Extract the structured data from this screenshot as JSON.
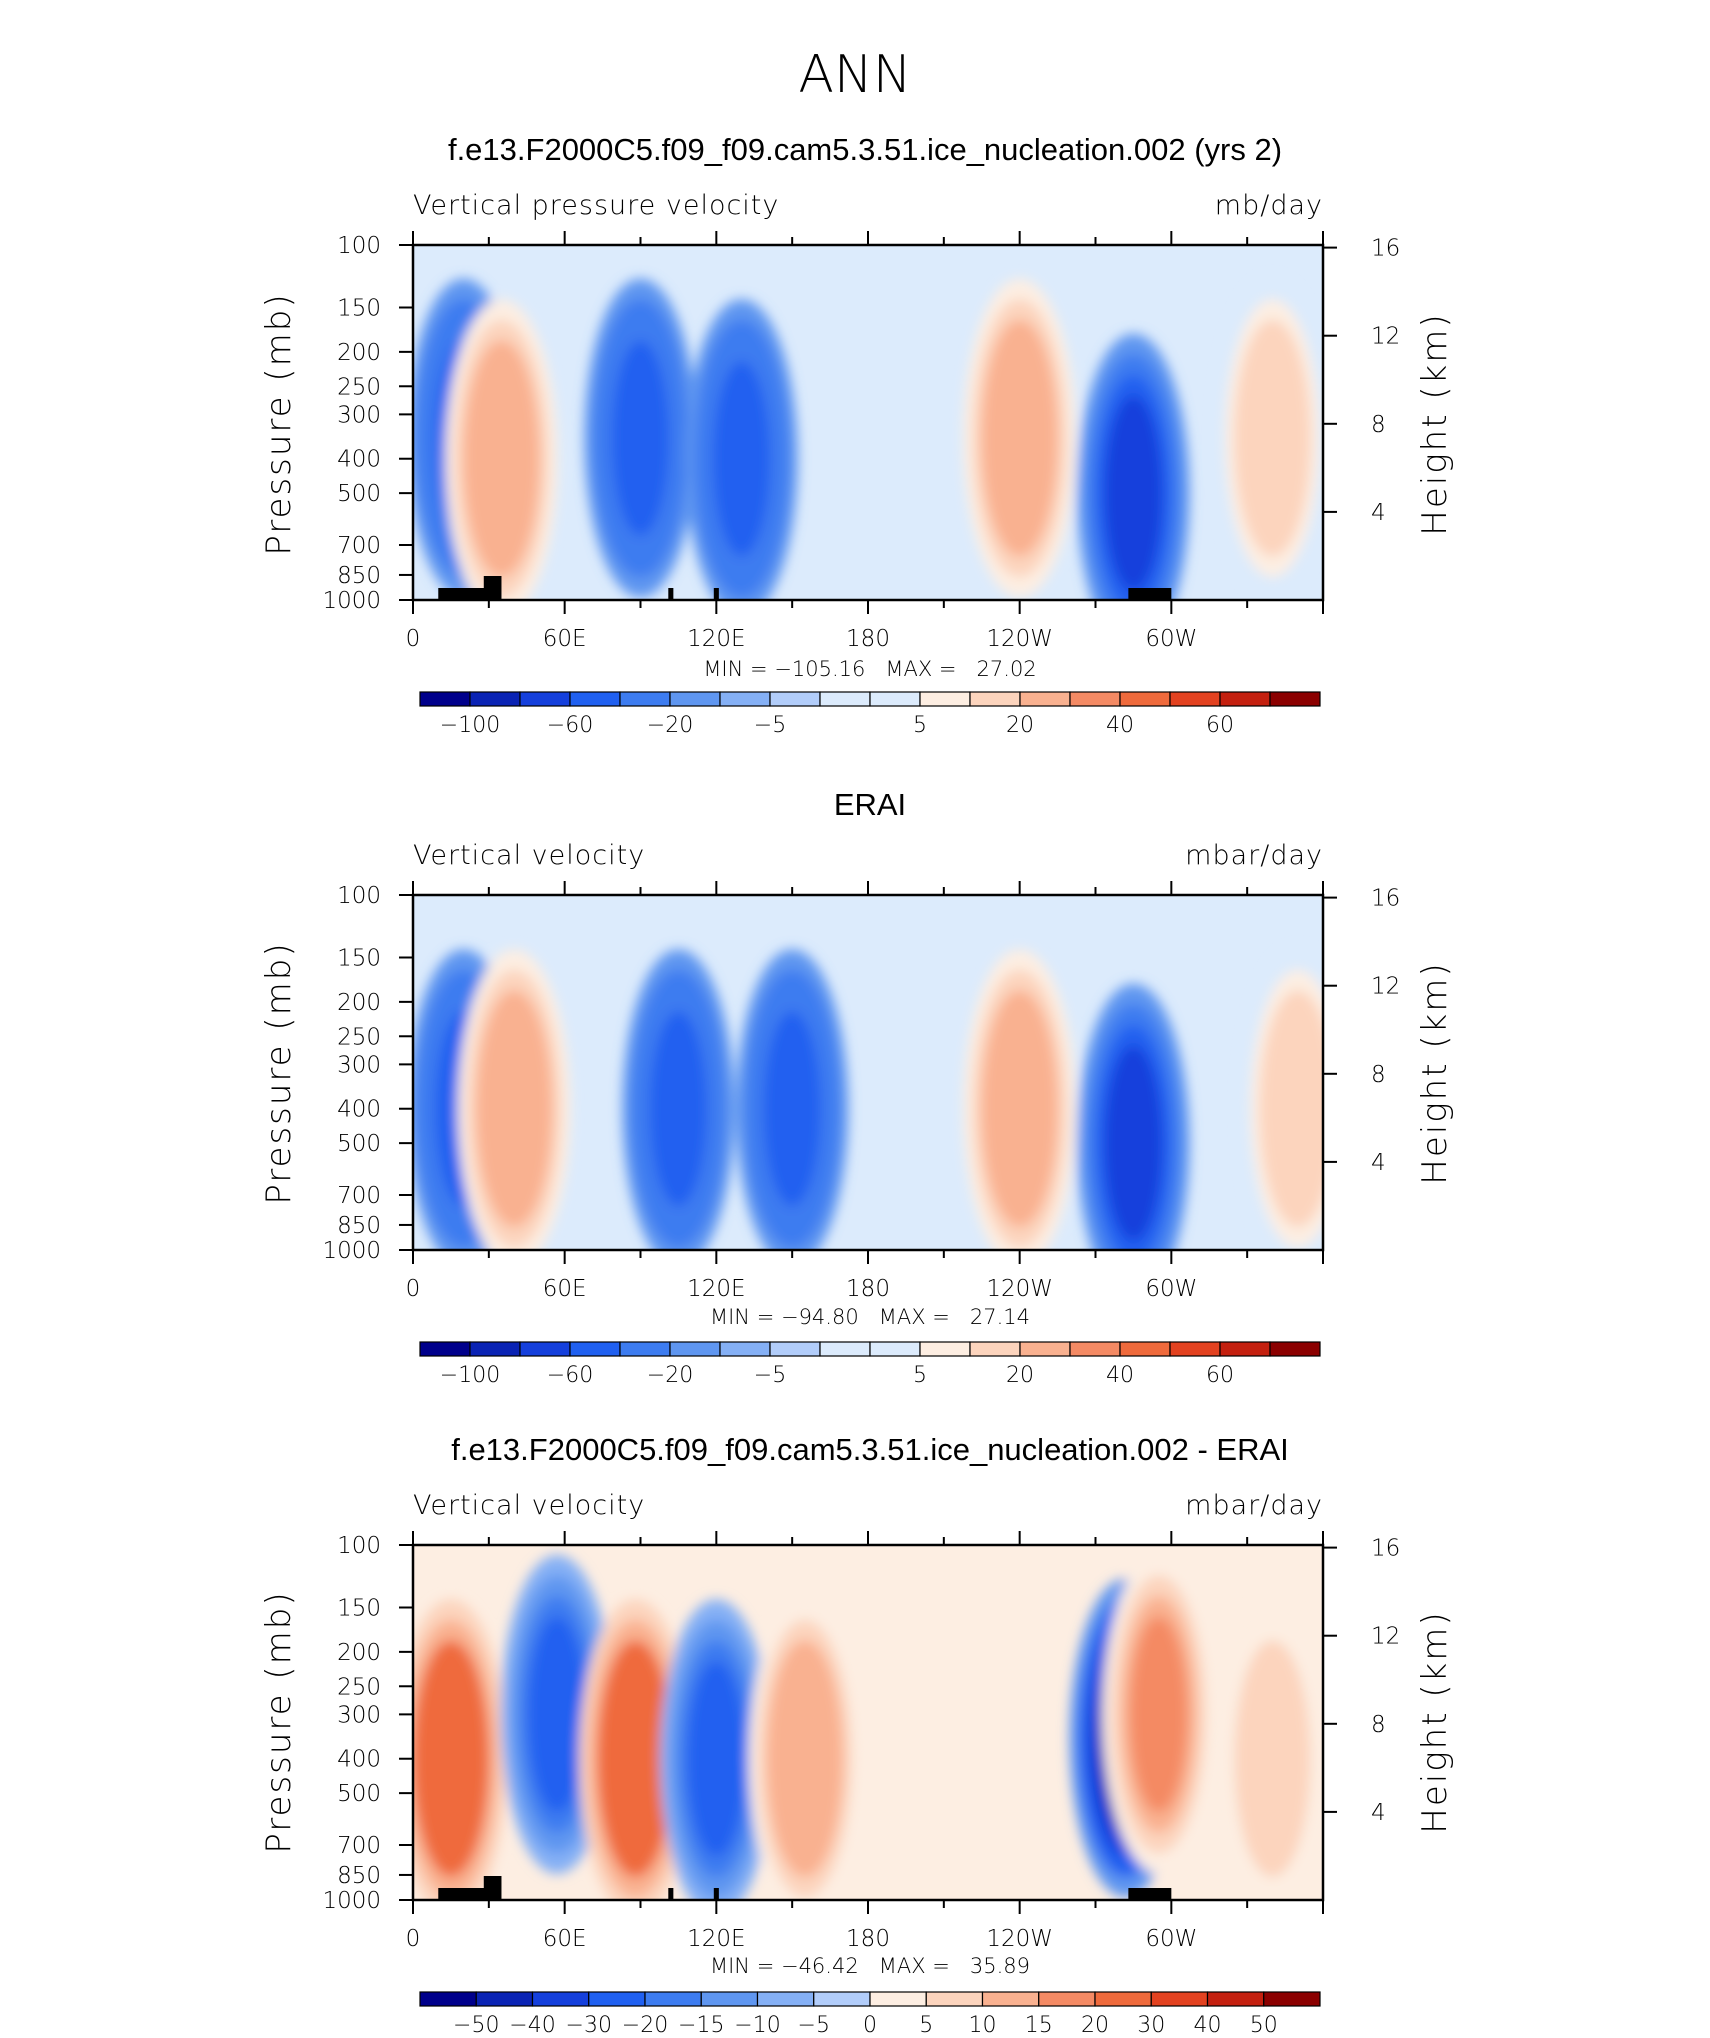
{
  "page": {
    "title": "ANN"
  },
  "colors": {
    "blue_red_16": [
      "#00008b",
      "#0a23b4",
      "#1540dc",
      "#2060f0",
      "#3d7cf0",
      "#5f96f0",
      "#85b0f5",
      "#b2cdfa",
      "#dcebfc",
      "#fdeee2",
      "#fcd4bd",
      "#f9b190",
      "#f48a64",
      "#ef6a3c",
      "#e34220",
      "#c4200f",
      "#8b0000"
    ]
  },
  "panels": [
    {
      "id": "model",
      "title": "f.e13.F2000C5.f09_f09.cam5.3.51.ice_nucleation.002 (yrs 2)",
      "left_label": "Vertical pressure velocity",
      "right_label": "mb/day",
      "ylabel": "Pressure (mb)",
      "y2label": "Height (km)",
      "minmax": "MIN = −105.16   MAX =   27.02",
      "colorbar_labels": [
        "−100",
        "−60",
        "−20",
        "−5",
        "5",
        "20",
        "40",
        "60"
      ],
      "topography": true
    },
    {
      "id": "erai",
      "title": "ERAI",
      "left_label": "Vertical velocity",
      "right_label": "mbar/day",
      "ylabel": "Pressure (mb)",
      "y2label": "Height (km)",
      "minmax": "MIN = −94.80   MAX =   27.14",
      "colorbar_labels": [
        "−100",
        "−60",
        "−20",
        "−5",
        "5",
        "20",
        "40",
        "60"
      ],
      "topography": false
    },
    {
      "id": "diff",
      "title": "f.e13.F2000C5.f09_f09.cam5.3.51.ice_nucleation.002 - ERAI",
      "left_label": "Vertical velocity",
      "right_label": "mbar/day",
      "ylabel": "Pressure (mb)",
      "y2label": "Height (km)",
      "minmax": "MIN = −46.42   MAX =   35.89",
      "colorbar_labels": [
        "−50",
        "−40",
        "−30",
        "−20",
        "−15",
        "−10",
        "−5",
        "0",
        "5",
        "10",
        "15",
        "20",
        "30",
        "40",
        "50"
      ],
      "topography": true
    }
  ],
  "chart_data": [
    {
      "type": "heatmap",
      "title": "f.e13.F2000C5.f09_f09.cam5.3.51.ice_nucleation.002 (yrs 2)",
      "ylabel": "Pressure (mb)",
      "y2label": "Height (km)",
      "x_ticks": [
        "0",
        "60E",
        "120E",
        "180",
        "120W",
        "60W"
      ],
      "x_range": [
        0,
        360
      ],
      "y_ticks": [
        "100",
        "150",
        "200",
        "250",
        "300",
        "400",
        "500",
        "700",
        "850",
        "1000"
      ],
      "y_range": [
        1000,
        100
      ],
      "y_log": true,
      "y2_ticks": [
        "4",
        "8",
        "12",
        "16"
      ],
      "levels": [
        -100,
        -80,
        -60,
        -40,
        -20,
        -10,
        -5,
        -2.5,
        0,
        2.5,
        5,
        10,
        20,
        30,
        40,
        50,
        60
      ],
      "min": -105.16,
      "max": 27.02,
      "features": [
        {
          "lon": 20,
          "p": 350,
          "value": -40
        },
        {
          "lon": 35,
          "p": 400,
          "value": 20
        },
        {
          "lon": 90,
          "p": 350,
          "value": -40
        },
        {
          "lon": 130,
          "p": 400,
          "value": -40
        },
        {
          "lon": 240,
          "p": 350,
          "value": 20
        },
        {
          "lon": 285,
          "p": 500,
          "value": -60
        },
        {
          "lon": 340,
          "p": 350,
          "value": 10
        }
      ]
    },
    {
      "type": "heatmap",
      "title": "ERAI",
      "ylabel": "Pressure (mb)",
      "y2label": "Height (km)",
      "x_ticks": [
        "0",
        "60E",
        "120E",
        "180",
        "120W",
        "60W"
      ],
      "x_range": [
        0,
        360
      ],
      "y_ticks": [
        "100",
        "150",
        "200",
        "250",
        "300",
        "400",
        "500",
        "700",
        "850",
        "1000"
      ],
      "y_range": [
        1000,
        100
      ],
      "y_log": true,
      "y2_ticks": [
        "4",
        "8",
        "12",
        "16"
      ],
      "levels": [
        -100,
        -80,
        -60,
        -40,
        -20,
        -10,
        -5,
        -2.5,
        0,
        2.5,
        5,
        10,
        20,
        30,
        40,
        50,
        60
      ],
      "min": -94.8,
      "max": 27.14,
      "features": [
        {
          "lon": 20,
          "p": 400,
          "value": -40
        },
        {
          "lon": 40,
          "p": 400,
          "value": 20
        },
        {
          "lon": 105,
          "p": 400,
          "value": -40
        },
        {
          "lon": 150,
          "p": 400,
          "value": -40
        },
        {
          "lon": 240,
          "p": 400,
          "value": 20
        },
        {
          "lon": 285,
          "p": 500,
          "value": -60
        },
        {
          "lon": 350,
          "p": 400,
          "value": 10
        }
      ]
    },
    {
      "type": "heatmap",
      "title": "f.e13.F2000C5.f09_f09.cam5.3.51.ice_nucleation.002 - ERAI",
      "ylabel": "Pressure (mb)",
      "y2label": "Height (km)",
      "x_ticks": [
        "0",
        "60E",
        "120E",
        "180",
        "120W",
        "60W"
      ],
      "x_range": [
        0,
        360
      ],
      "y_ticks": [
        "100",
        "150",
        "200",
        "250",
        "300",
        "400",
        "500",
        "700",
        "850",
        "1000"
      ],
      "y_range": [
        1000,
        100
      ],
      "y_log": true,
      "y2_ticks": [
        "4",
        "8",
        "12",
        "16"
      ],
      "levels": [
        -50,
        -40,
        -30,
        -20,
        -15,
        -10,
        -5,
        0,
        5,
        10,
        15,
        20,
        30,
        40,
        50
      ],
      "min": -46.42,
      "max": 35.89,
      "features": [
        {
          "lon": 15,
          "p": 400,
          "value": 30
        },
        {
          "lon": 57,
          "p": 300,
          "value": -20
        },
        {
          "lon": 88,
          "p": 400,
          "value": 30
        },
        {
          "lon": 120,
          "p": 400,
          "value": -20
        },
        {
          "lon": 155,
          "p": 400,
          "value": 15
        },
        {
          "lon": 282,
          "p": 350,
          "value": -40
        },
        {
          "lon": 295,
          "p": 300,
          "value": 20
        },
        {
          "lon": 340,
          "p": 400,
          "value": 10
        }
      ]
    }
  ]
}
